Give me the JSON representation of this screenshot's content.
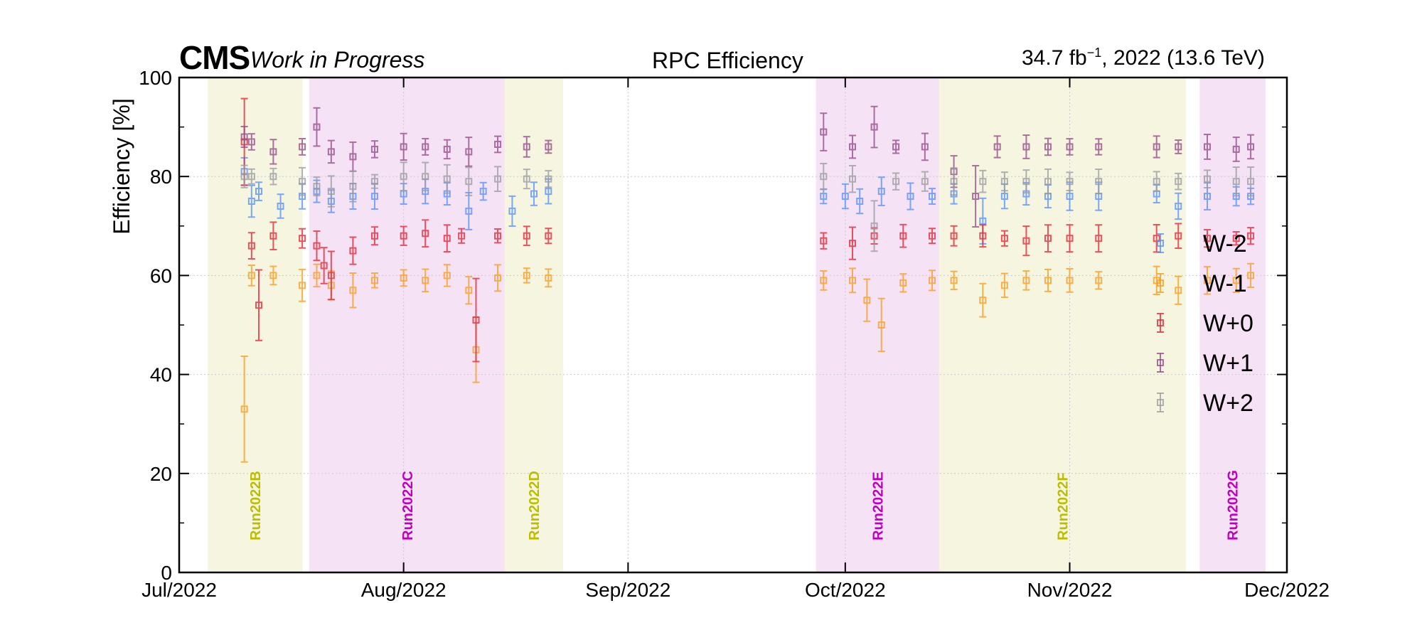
{
  "header": {
    "experiment": "CMS",
    "status": "Work in Progress",
    "title": "RPC Efficiency",
    "lumi_value": "34.7 fb",
    "lumi_exp": "−1",
    "lumi_rest": ", 2022 (13.6 TeV)"
  },
  "chart_data": {
    "type": "scatter",
    "ylabel": "Efficiency [%]",
    "xlabel": "",
    "xlim": [
      "2022-07-01",
      "2022-12-01"
    ],
    "ylim": [
      0,
      100
    ],
    "grid": true,
    "legend_position": "right",
    "x_ticks": [
      {
        "date": "2022-07-01",
        "label": "Jul/2022"
      },
      {
        "date": "2022-08-01",
        "label": "Aug/2022"
      },
      {
        "date": "2022-09-01",
        "label": "Sep/2022"
      },
      {
        "date": "2022-10-01",
        "label": "Oct/2022"
      },
      {
        "date": "2022-11-01",
        "label": "Nov/2022"
      },
      {
        "date": "2022-12-01",
        "label": "Dec/2022"
      }
    ],
    "y_ticks": [
      0,
      20,
      40,
      60,
      80,
      100
    ],
    "runs": [
      {
        "name": "Run2022B",
        "start": "2022-07-05",
        "end": "2022-07-18",
        "color": "#bdbd00",
        "fill": "#f6f6e0"
      },
      {
        "name": "Run2022C",
        "start": "2022-07-19",
        "end": "2022-08-15",
        "color": "#c000c0",
        "fill": "#f5e3f5"
      },
      {
        "name": "Run2022D",
        "start": "2022-08-15",
        "end": "2022-08-23",
        "color": "#bdbd00",
        "fill": "#f6f6e0"
      },
      {
        "name": "Run2022E",
        "start": "2022-09-27",
        "end": "2022-10-14",
        "color": "#c000c0",
        "fill": "#f5e3f5"
      },
      {
        "name": "Run2022F",
        "start": "2022-10-14",
        "end": "2022-11-17",
        "color": "#bdbd00",
        "fill": "#f6f6e0"
      },
      {
        "name": "Run2022G",
        "start": "2022-11-19",
        "end": "2022-11-28",
        "color": "#c000c0",
        "fill": "#f5e3f5"
      }
    ],
    "series": [
      {
        "name": "W-2",
        "color": "#5790fc",
        "level": 76.5,
        "points": [
          [
            "2022-07-10",
            81
          ],
          [
            "2022-07-11",
            75
          ],
          [
            "2022-07-12",
            77
          ],
          [
            "2022-07-15",
            74
          ],
          [
            "2022-07-18",
            76
          ],
          [
            "2022-07-20",
            77
          ],
          [
            "2022-07-22",
            75
          ],
          [
            "2022-07-25",
            76
          ],
          [
            "2022-07-28",
            76
          ],
          [
            "2022-08-01",
            76.5
          ],
          [
            "2022-08-04",
            77
          ],
          [
            "2022-08-07",
            76.5
          ],
          [
            "2022-08-10",
            73
          ],
          [
            "2022-08-12",
            77
          ],
          [
            "2022-08-16",
            73
          ],
          [
            "2022-08-19",
            76.5
          ],
          [
            "2022-08-21",
            77
          ],
          [
            "2022-09-28",
            76
          ],
          [
            "2022-10-01",
            76
          ],
          [
            "2022-10-03",
            75
          ],
          [
            "2022-10-06",
            77
          ],
          [
            "2022-10-10",
            76
          ],
          [
            "2022-10-13",
            76
          ],
          [
            "2022-10-16",
            76.5
          ],
          [
            "2022-10-20",
            71
          ],
          [
            "2022-10-23",
            76
          ],
          [
            "2022-10-26",
            76.5
          ],
          [
            "2022-10-29",
            76
          ],
          [
            "2022-11-01",
            76
          ],
          [
            "2022-11-05",
            76
          ],
          [
            "2022-11-13",
            76.5
          ],
          [
            "2022-11-16",
            74
          ],
          [
            "2022-11-20",
            76
          ],
          [
            "2022-11-24",
            76
          ],
          [
            "2022-11-26",
            76
          ]
        ]
      },
      {
        "name": "W-1",
        "color": "#f89c20",
        "level": 59.5,
        "points": [
          [
            "2022-07-10",
            33
          ],
          [
            "2022-07-11",
            60
          ],
          [
            "2022-07-14",
            60
          ],
          [
            "2022-07-18",
            58
          ],
          [
            "2022-07-20",
            60
          ],
          [
            "2022-07-22",
            58
          ],
          [
            "2022-07-25",
            57
          ],
          [
            "2022-07-28",
            59
          ],
          [
            "2022-08-01",
            59.5
          ],
          [
            "2022-08-04",
            59
          ],
          [
            "2022-08-07",
            60
          ],
          [
            "2022-08-10",
            57
          ],
          [
            "2022-08-11",
            45
          ],
          [
            "2022-08-14",
            59.5
          ],
          [
            "2022-08-18",
            60
          ],
          [
            "2022-08-21",
            59.5
          ],
          [
            "2022-09-28",
            59
          ],
          [
            "2022-10-02",
            59
          ],
          [
            "2022-10-04",
            55
          ],
          [
            "2022-10-06",
            50
          ],
          [
            "2022-10-09",
            58.5
          ],
          [
            "2022-10-13",
            59
          ],
          [
            "2022-10-16",
            59
          ],
          [
            "2022-10-20",
            55
          ],
          [
            "2022-10-23",
            58
          ],
          [
            "2022-10-26",
            59
          ],
          [
            "2022-10-29",
            59
          ],
          [
            "2022-11-01",
            59
          ],
          [
            "2022-11-05",
            59
          ],
          [
            "2022-11-13",
            59
          ],
          [
            "2022-11-16",
            57
          ],
          [
            "2022-11-20",
            59
          ],
          [
            "2022-11-24",
            59
          ],
          [
            "2022-11-26",
            60
          ]
        ]
      },
      {
        "name": "W+0",
        "color": "#e42536",
        "level": 67.8,
        "points": [
          [
            "2022-07-10",
            87
          ],
          [
            "2022-07-11",
            66
          ],
          [
            "2022-07-12",
            54
          ],
          [
            "2022-07-14",
            68
          ],
          [
            "2022-07-18",
            67.5
          ],
          [
            "2022-07-20",
            66
          ],
          [
            "2022-07-21",
            62
          ],
          [
            "2022-07-22",
            60
          ],
          [
            "2022-07-25",
            65
          ],
          [
            "2022-07-28",
            68
          ],
          [
            "2022-08-01",
            68
          ],
          [
            "2022-08-04",
            68.5
          ],
          [
            "2022-08-07",
            67.5
          ],
          [
            "2022-08-09",
            68
          ],
          [
            "2022-08-11",
            51
          ],
          [
            "2022-08-14",
            68
          ],
          [
            "2022-08-18",
            68
          ],
          [
            "2022-08-21",
            68
          ],
          [
            "2022-09-28",
            67
          ],
          [
            "2022-10-02",
            66.5
          ],
          [
            "2022-10-05",
            68
          ],
          [
            "2022-10-09",
            68
          ],
          [
            "2022-10-13",
            68
          ],
          [
            "2022-10-16",
            68
          ],
          [
            "2022-10-20",
            68
          ],
          [
            "2022-10-23",
            67.5
          ],
          [
            "2022-10-26",
            67
          ],
          [
            "2022-10-29",
            67.5
          ],
          [
            "2022-11-01",
            67.5
          ],
          [
            "2022-11-05",
            67.5
          ],
          [
            "2022-11-13",
            67.5
          ],
          [
            "2022-11-16",
            68
          ],
          [
            "2022-11-20",
            67.5
          ],
          [
            "2022-11-24",
            67.5
          ],
          [
            "2022-11-26",
            68
          ]
        ]
      },
      {
        "name": "W+1",
        "color": "#964a8b",
        "level": 85.8,
        "points": [
          [
            "2022-07-10",
            88
          ],
          [
            "2022-07-11",
            87
          ],
          [
            "2022-07-14",
            85
          ],
          [
            "2022-07-18",
            86
          ],
          [
            "2022-07-20",
            90
          ],
          [
            "2022-07-22",
            85
          ],
          [
            "2022-07-25",
            84
          ],
          [
            "2022-07-28",
            85.5
          ],
          [
            "2022-08-01",
            86
          ],
          [
            "2022-08-04",
            86
          ],
          [
            "2022-08-07",
            85.5
          ],
          [
            "2022-08-10",
            85
          ],
          [
            "2022-08-14",
            86.5
          ],
          [
            "2022-08-18",
            86
          ],
          [
            "2022-08-21",
            86
          ],
          [
            "2022-09-28",
            89
          ],
          [
            "2022-10-02",
            86
          ],
          [
            "2022-10-05",
            90
          ],
          [
            "2022-10-08",
            86
          ],
          [
            "2022-10-12",
            86
          ],
          [
            "2022-10-16",
            81
          ],
          [
            "2022-10-19",
            76
          ],
          [
            "2022-10-22",
            86
          ],
          [
            "2022-10-26",
            86
          ],
          [
            "2022-10-29",
            86
          ],
          [
            "2022-11-01",
            86
          ],
          [
            "2022-11-05",
            86
          ],
          [
            "2022-11-13",
            86
          ],
          [
            "2022-11-16",
            86
          ],
          [
            "2022-11-20",
            86
          ],
          [
            "2022-11-24",
            85.5
          ],
          [
            "2022-11-26",
            86
          ]
        ]
      },
      {
        "name": "W+2",
        "color": "#9c9ca1",
        "level": 79.3,
        "points": [
          [
            "2022-07-10",
            80
          ],
          [
            "2022-07-11",
            80
          ],
          [
            "2022-07-14",
            80
          ],
          [
            "2022-07-18",
            79
          ],
          [
            "2022-07-20",
            78
          ],
          [
            "2022-07-22",
            77
          ],
          [
            "2022-07-25",
            78
          ],
          [
            "2022-07-28",
            79
          ],
          [
            "2022-08-01",
            80
          ],
          [
            "2022-08-04",
            80
          ],
          [
            "2022-08-07",
            79.5
          ],
          [
            "2022-08-10",
            79
          ],
          [
            "2022-08-14",
            79.5
          ],
          [
            "2022-08-18",
            79.5
          ],
          [
            "2022-08-21",
            79.5
          ],
          [
            "2022-09-28",
            80
          ],
          [
            "2022-10-02",
            79.5
          ],
          [
            "2022-10-05",
            70
          ],
          [
            "2022-10-08",
            79
          ],
          [
            "2022-10-12",
            79
          ],
          [
            "2022-10-16",
            79
          ],
          [
            "2022-10-20",
            79
          ],
          [
            "2022-10-23",
            79
          ],
          [
            "2022-10-26",
            79
          ],
          [
            "2022-10-29",
            79
          ],
          [
            "2022-11-01",
            79
          ],
          [
            "2022-11-05",
            79
          ],
          [
            "2022-11-13",
            79
          ],
          [
            "2022-11-16",
            79
          ],
          [
            "2022-11-20",
            79.5
          ],
          [
            "2022-11-24",
            79
          ],
          [
            "2022-11-26",
            79
          ]
        ]
      }
    ]
  }
}
